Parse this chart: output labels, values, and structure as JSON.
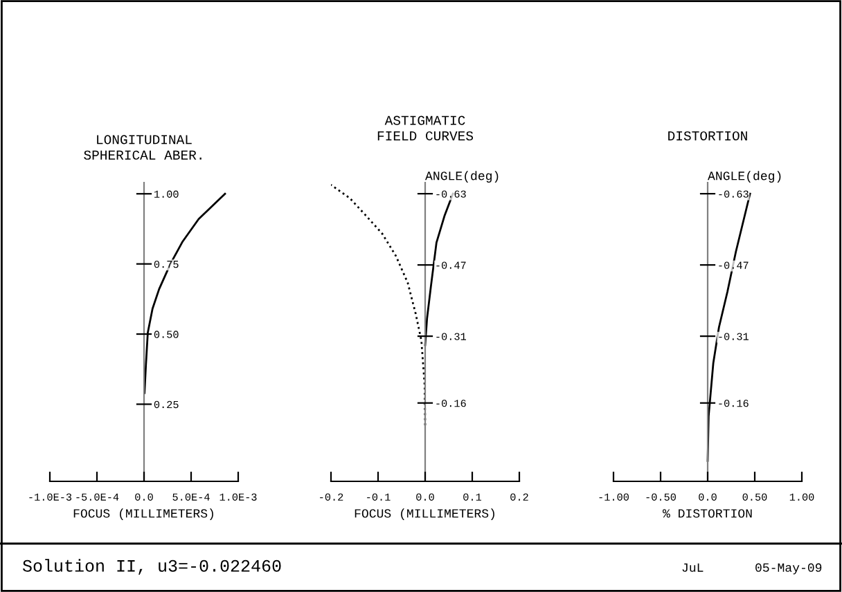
{
  "chart_data": [
    {
      "type": "line",
      "title": "LONGITUDINAL\nSPHERICAL ABER.",
      "xlabel": "FOCUS (MILLIMETERS)",
      "xlim": [
        -0.001,
        0.001
      ],
      "ylim": [
        -0.025,
        1.04
      ],
      "xticks": [
        {
          "value": -0.001,
          "label": "-1.0E-3"
        },
        {
          "value": -0.0005,
          "label": "-5.0E-4"
        },
        {
          "value": 0,
          "label": "0.0"
        },
        {
          "value": 0.0005,
          "label": "5.0E-4"
        },
        {
          "value": 0.001,
          "label": "1.0E-3"
        }
      ],
      "yticks": [
        {
          "value": 0.25,
          "label": "0.25"
        },
        {
          "value": 0.5,
          "label": "0.50"
        },
        {
          "value": 0.75,
          "label": "0.75"
        },
        {
          "value": 1,
          "label": "1.00"
        }
      ],
      "grid": false,
      "legend": false,
      "marker": "none",
      "series": [
        {
          "color": "#000000",
          "line_style": "solid",
          "x": [
            5e-06,
            2e-05,
            4e-05,
            9e-05,
            0.00016,
            0.00028,
            0.00041,
            0.00058,
            0.00086
          ],
          "values": [
            0.29,
            0.39,
            0.505,
            0.59,
            0.66,
            0.75,
            0.83,
            0.91,
            1.0
          ]
        }
      ],
      "annotations": [
        "Solution II, u3=-0.022460"
      ]
    },
    {
      "type": "line",
      "title": "ASTIGMATIC\nFIELD CURVES",
      "xlabel": "FOCUS (MILLIMETERS)",
      "ylabel": "ANGLE(deg)",
      "xlim": [
        -0.2,
        0.2
      ],
      "xticks": [
        {
          "value": -0.2,
          "label": "-0.2"
        },
        {
          "value": -0.1,
          "label": "-0.1"
        },
        {
          "value": 0,
          "label": "0.0"
        },
        {
          "value": 0.1,
          "label": "0.1"
        },
        {
          "value": 0.2,
          "label": "0.2"
        }
      ],
      "ylim": [
        0.016,
        -0.655
      ],
      "yticks": [
        -0.16,
        -0.31,
        -0.47,
        -0.63
      ],
      "grid": false,
      "legend": false,
      "marker": "none",
      "series": [
        {
          "color": "#000000",
          "line_style": "solid",
          "x": [
            0,
            0.004,
            0.012,
            0.024,
            0.041,
            0.059
          ],
          "values": [
            -0.29,
            -0.35,
            -0.42,
            -0.52,
            -0.58,
            -0.63
          ]
        },
        {
          "color": "#000000",
          "line_style": "dotted",
          "x": [
            0,
            -0.001,
            -0.008,
            -0.02,
            -0.037,
            -0.062,
            -0.091,
            -0.125,
            -0.16,
            -0.2
          ],
          "values": [
            -0.11,
            -0.2,
            -0.3,
            -0.36,
            -0.43,
            -0.49,
            -0.54,
            -0.58,
            -0.62,
            -0.65
          ]
        }
      ]
    },
    {
      "type": "line",
      "title": "DISTORTION",
      "xlabel": "% DISTORTION",
      "ylabel": "ANGLE(deg)",
      "xlim": [
        -1,
        1
      ],
      "xticks": [
        {
          "value": -1,
          "label": "-1.00"
        },
        {
          "value": -0.5,
          "label": "-0.50"
        },
        {
          "value": 0,
          "label": "0.0"
        },
        {
          "value": 0.5,
          "label": "0.50"
        },
        {
          "value": 1,
          "label": "1.00"
        }
      ],
      "ylim": [
        0.016,
        -0.655
      ],
      "yticks": [
        -0.16,
        -0.31,
        -0.47,
        -0.63
      ],
      "grid": false,
      "legend": false,
      "marker": "none",
      "series": [
        {
          "color": "#000000",
          "line_style": "solid",
          "x": [
            0,
            0.01,
            0.06,
            0.12,
            0.21,
            0.3,
            0.45
          ],
          "values": [
            -0.03,
            -0.13,
            -0.25,
            -0.33,
            -0.41,
            -0.5,
            -0.63
          ]
        }
      ],
      "annotations": [
        "JuL",
        "05-May-09"
      ]
    }
  ]
}
